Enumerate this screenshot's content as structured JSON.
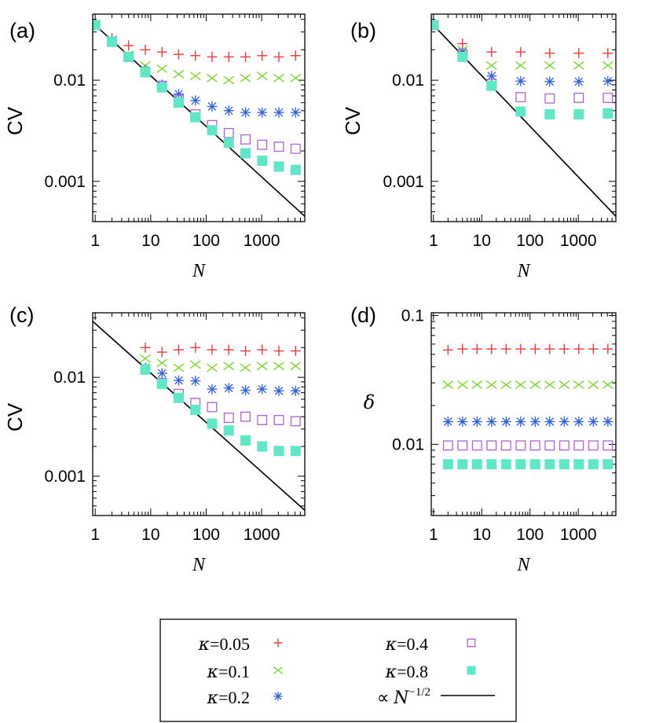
{
  "colors": {
    "k005": "#ef3b3b",
    "k01": "#7ad82b",
    "k02": "#2f5fe0",
    "k04": "#b05fe0",
    "k08": "#5ee8c6",
    "fit": "#000000"
  },
  "legend": {
    "entries": [
      {
        "key": "k005",
        "prefix": "κ",
        "value": "=0.05",
        "marker": "plus"
      },
      {
        "key": "k01",
        "prefix": "κ",
        "value": "=0.1",
        "marker": "cross"
      },
      {
        "key": "k02",
        "prefix": "κ",
        "value": "=0.2",
        "marker": "star"
      },
      {
        "key": "k04",
        "prefix": "κ",
        "value": "=0.4",
        "marker": "square-open"
      },
      {
        "key": "k08",
        "prefix": "κ",
        "value": "=0.8",
        "marker": "square-filled"
      }
    ],
    "fit_label_prefix": "∝",
    "fit_label_base": "N",
    "fit_label_exponent": "−1/2"
  },
  "chart_data": [
    {
      "type": "scatter",
      "panel_label": "(a)",
      "xlabel": "N",
      "ylabel": "CV",
      "xscale": "log",
      "yscale": "log",
      "xlim": [
        0.9,
        6000
      ],
      "ylim": [
        0.0004,
        0.045
      ],
      "xticks": [
        1,
        10,
        100,
        1000
      ],
      "xtick_labels": [
        "1",
        "10",
        "100",
        "1000"
      ],
      "yticks": [
        0.001,
        0.01
      ],
      "ytick_labels": [
        "0.001",
        "0.01"
      ],
      "reference_line": {
        "label": "∝ N^−1/2",
        "coefficient": 0.035,
        "exponent": -0.5
      },
      "x": [
        1,
        2,
        4,
        8,
        16,
        32,
        64,
        128,
        256,
        512,
        1024,
        2048,
        4096
      ],
      "series": [
        {
          "name": "κ=0.05",
          "key": "k005",
          "marker": "plus",
          "values": [
            0.035,
            0.026,
            0.022,
            0.02,
            0.019,
            0.018,
            0.0175,
            0.017,
            0.017,
            0.017,
            0.0175,
            0.017,
            0.0175
          ]
        },
        {
          "name": "κ=0.1",
          "key": "k01",
          "marker": "cross",
          "values": [
            0.035,
            0.025,
            0.018,
            0.014,
            0.013,
            0.0115,
            0.011,
            0.0105,
            0.01,
            0.0105,
            0.011,
            0.0105,
            0.0105
          ]
        },
        {
          "name": "κ=0.2",
          "key": "k02",
          "marker": "star",
          "values": [
            0.035,
            0.025,
            0.017,
            0.0125,
            0.009,
            0.0073,
            0.0063,
            0.0055,
            0.005,
            0.0048,
            0.0048,
            0.0048,
            0.0048
          ]
        },
        {
          "name": "κ=0.4",
          "key": "k04",
          "marker": "square-open",
          "values": [
            0.035,
            0.024,
            0.017,
            0.012,
            0.0088,
            0.0064,
            0.0046,
            0.0036,
            0.003,
            0.0026,
            0.0023,
            0.0022,
            0.0021
          ]
        },
        {
          "name": "κ=0.8",
          "key": "k08",
          "marker": "square-filled",
          "values": [
            0.035,
            0.024,
            0.017,
            0.012,
            0.0085,
            0.006,
            0.0043,
            0.0032,
            0.0024,
            0.0019,
            0.0016,
            0.0014,
            0.0013
          ]
        }
      ]
    },
    {
      "type": "scatter",
      "panel_label": "(b)",
      "xlabel": "N",
      "ylabel": "CV",
      "xscale": "log",
      "yscale": "log",
      "xlim": [
        0.9,
        6000
      ],
      "ylim": [
        0.0004,
        0.045
      ],
      "xticks": [
        1,
        10,
        100,
        1000
      ],
      "xtick_labels": [
        "1",
        "10",
        "100",
        "1000"
      ],
      "yticks": [
        0.001,
        0.01
      ],
      "ytick_labels": [
        "0.001",
        "0.01"
      ],
      "reference_line": {
        "label": "∝ N^−1/2",
        "coefficient": 0.035,
        "exponent": -0.5
      },
      "x": [
        1,
        4,
        16,
        64,
        256,
        1024,
        4096
      ],
      "series": [
        {
          "name": "κ=0.05",
          "key": "k005",
          "marker": "plus",
          "values": [
            0.035,
            0.023,
            0.019,
            0.019,
            0.0185,
            0.0185,
            0.0185
          ]
        },
        {
          "name": "κ=0.1",
          "key": "k01",
          "marker": "cross",
          "values": [
            0.035,
            0.02,
            0.014,
            0.014,
            0.014,
            0.014,
            0.014
          ]
        },
        {
          "name": "κ=0.2",
          "key": "k02",
          "marker": "star",
          "values": [
            0.035,
            0.019,
            0.011,
            0.0098,
            0.0097,
            0.0097,
            0.0098
          ]
        },
        {
          "name": "κ=0.4",
          "key": "k04",
          "marker": "square-open",
          "values": [
            0.035,
            0.018,
            0.0092,
            0.0068,
            0.0066,
            0.0067,
            0.0067
          ]
        },
        {
          "name": "κ=0.8",
          "key": "k08",
          "marker": "square-filled",
          "values": [
            0.035,
            0.017,
            0.0088,
            0.0049,
            0.0046,
            0.0046,
            0.0047
          ]
        }
      ]
    },
    {
      "type": "scatter",
      "panel_label": "(c)",
      "xlabel": "N",
      "ylabel": "CV",
      "xscale": "log",
      "yscale": "log",
      "xlim": [
        0.9,
        6000
      ],
      "ylim": [
        0.0004,
        0.045
      ],
      "xticks": [
        1,
        10,
        100,
        1000
      ],
      "xtick_labels": [
        "1",
        "10",
        "100",
        "1000"
      ],
      "yticks": [
        0.001,
        0.01
      ],
      "ytick_labels": [
        "0.001",
        "0.01"
      ],
      "reference_line": {
        "label": "∝ N^−1/2",
        "coefficient": 0.035,
        "exponent": -0.5
      },
      "x": [
        8,
        16,
        32,
        64,
        128,
        256,
        512,
        1024,
        2048,
        4096
      ],
      "series": [
        {
          "name": "κ=0.05",
          "key": "k005",
          "marker": "plus",
          "values": [
            0.02,
            0.018,
            0.019,
            0.02,
            0.019,
            0.019,
            0.0185,
            0.019,
            0.0185,
            0.0185
          ]
        },
        {
          "name": "κ=0.1",
          "key": "k01",
          "marker": "cross",
          "values": [
            0.0155,
            0.014,
            0.0125,
            0.0135,
            0.0125,
            0.013,
            0.0125,
            0.013,
            0.013,
            0.013
          ]
        },
        {
          "name": "κ=0.2",
          "key": "k02",
          "marker": "star",
          "values": [
            0.0125,
            0.011,
            0.0093,
            0.0092,
            0.0076,
            0.0078,
            0.0074,
            0.0076,
            0.0073,
            0.0073
          ]
        },
        {
          "name": "κ=0.4",
          "key": "k04",
          "marker": "square-open",
          "values": [
            0.012,
            0.0088,
            0.0068,
            0.0055,
            0.005,
            0.0039,
            0.004,
            0.0037,
            0.0037,
            0.0036
          ]
        },
        {
          "name": "κ=0.8",
          "key": "k08",
          "marker": "square-filled",
          "values": [
            0.012,
            0.0086,
            0.0062,
            0.0047,
            0.0034,
            0.0029,
            0.0023,
            0.002,
            0.0018,
            0.0018
          ]
        }
      ]
    },
    {
      "type": "scatter",
      "panel_label": "(d)",
      "xlabel": "N",
      "ylabel": "δ",
      "xscale": "log",
      "yscale": "log",
      "xlim": [
        0.9,
        6000
      ],
      "ylim": [
        0.0028,
        0.105
      ],
      "xticks": [
        1,
        10,
        100,
        1000
      ],
      "xtick_labels": [
        "1",
        "10",
        "100",
        "1000"
      ],
      "yticks": [
        0.01,
        0.1
      ],
      "ytick_labels": [
        "0.01",
        "0.1"
      ],
      "x": [
        2,
        4,
        8,
        16,
        32,
        64,
        128,
        256,
        512,
        1024,
        2048,
        4096
      ],
      "series": [
        {
          "name": "κ=0.05",
          "key": "k005",
          "marker": "plus",
          "values": [
            0.054,
            0.055,
            0.055,
            0.055,
            0.055,
            0.055,
            0.055,
            0.055,
            0.055,
            0.055,
            0.055,
            0.055
          ]
        },
        {
          "name": "κ=0.1",
          "key": "k01",
          "marker": "cross",
          "values": [
            0.029,
            0.029,
            0.029,
            0.029,
            0.029,
            0.029,
            0.029,
            0.029,
            0.029,
            0.029,
            0.029,
            0.029
          ]
        },
        {
          "name": "κ=0.2",
          "key": "k02",
          "marker": "star",
          "values": [
            0.015,
            0.015,
            0.015,
            0.015,
            0.015,
            0.015,
            0.015,
            0.015,
            0.015,
            0.015,
            0.015,
            0.015
          ]
        },
        {
          "name": "κ=0.4",
          "key": "k04",
          "marker": "square-open",
          "values": [
            0.0098,
            0.0098,
            0.0098,
            0.0098,
            0.0098,
            0.0098,
            0.0098,
            0.0098,
            0.0098,
            0.0098,
            0.0098,
            0.0098
          ]
        },
        {
          "name": "κ=0.8",
          "key": "k08",
          "marker": "square-filled",
          "values": [
            0.007,
            0.007,
            0.007,
            0.007,
            0.007,
            0.007,
            0.007,
            0.007,
            0.007,
            0.007,
            0.007,
            0.007
          ]
        }
      ]
    }
  ]
}
